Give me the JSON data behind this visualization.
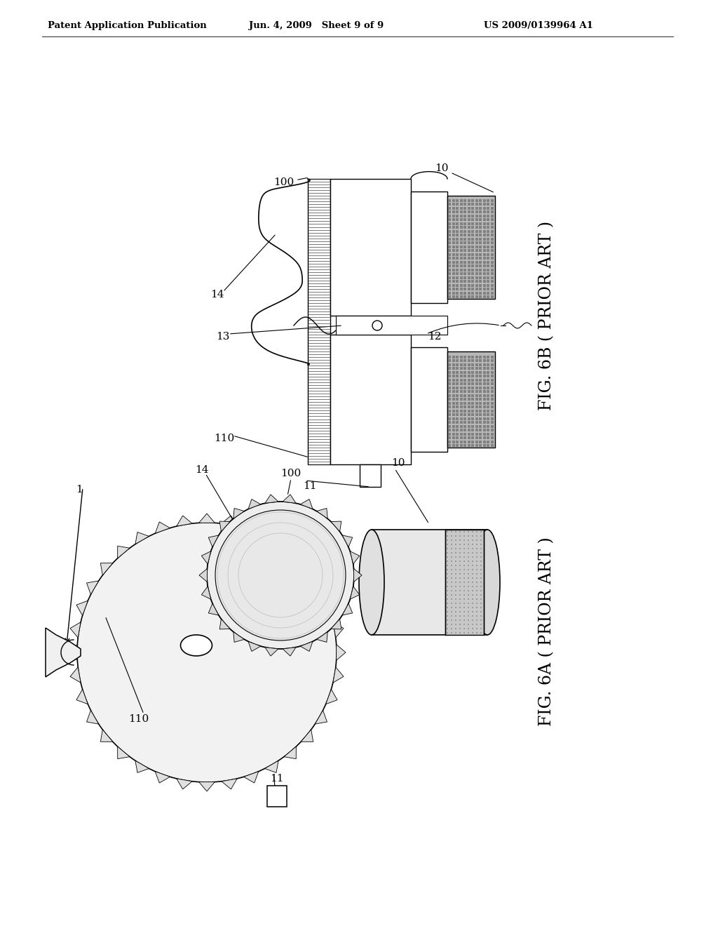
{
  "background_color": "#ffffff",
  "header_left": "Patent Application Publication",
  "header_center": "Jun. 4, 2009   Sheet 9 of 9",
  "header_right": "US 2009/0139964 A1",
  "fig6b_caption": "FIG. 6B ( PRIOR ART )",
  "fig6a_caption": "FIG. 6A ( PRIOR ART )"
}
